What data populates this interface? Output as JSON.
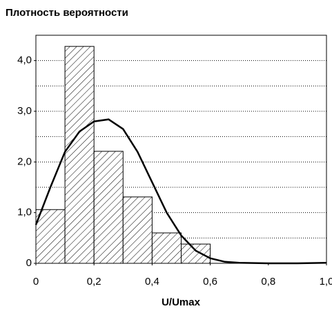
{
  "chart_data": {
    "type": "histogram",
    "title": "Плотность вероятности",
    "xlabel": "U/Umax",
    "bins": [
      0,
      0.1,
      0.2,
      0.3,
      0.4,
      0.5,
      0.6
    ],
    "values": [
      1.06,
      4.28,
      2.21,
      1.31,
      0.6,
      0.38
    ],
    "color": "#000000",
    "curve": {
      "color": "#000000",
      "x": [
        0,
        0.05,
        0.1,
        0.15,
        0.2,
        0.25,
        0.3,
        0.35,
        0.4,
        0.45,
        0.5,
        0.55,
        0.6,
        0.65,
        0.7,
        0.8,
        0.9,
        1.0
      ],
      "y": [
        0.76,
        1.5,
        2.2,
        2.6,
        2.8,
        2.84,
        2.65,
        2.2,
        1.6,
        1.0,
        0.55,
        0.25,
        0.1,
        0.03,
        0.01,
        0,
        0,
        0.01
      ]
    },
    "xlim": [
      0,
      1
    ],
    "xticks": [
      0,
      {
        "value": 0.2,
        "label": "0,2"
      },
      {
        "value": 0.4,
        "label": "0,4"
      },
      {
        "value": 0.6,
        "label": "0,6"
      },
      {
        "value": 0.8,
        "label": "0,8"
      },
      {
        "value": 1,
        "label": "1,0"
      }
    ],
    "ylim": [
      0,
      4.5
    ],
    "yticks": [
      0,
      {
        "value": 1,
        "label": "1,0"
      },
      {
        "value": 2,
        "label": "2,0"
      },
      {
        "value": 3,
        "label": "3,0"
      },
      {
        "value": 4,
        "label": "4,0"
      }
    ],
    "minor_yticks": [
      0.5,
      1.5,
      2.5,
      3.5
    ],
    "grid": true
  }
}
